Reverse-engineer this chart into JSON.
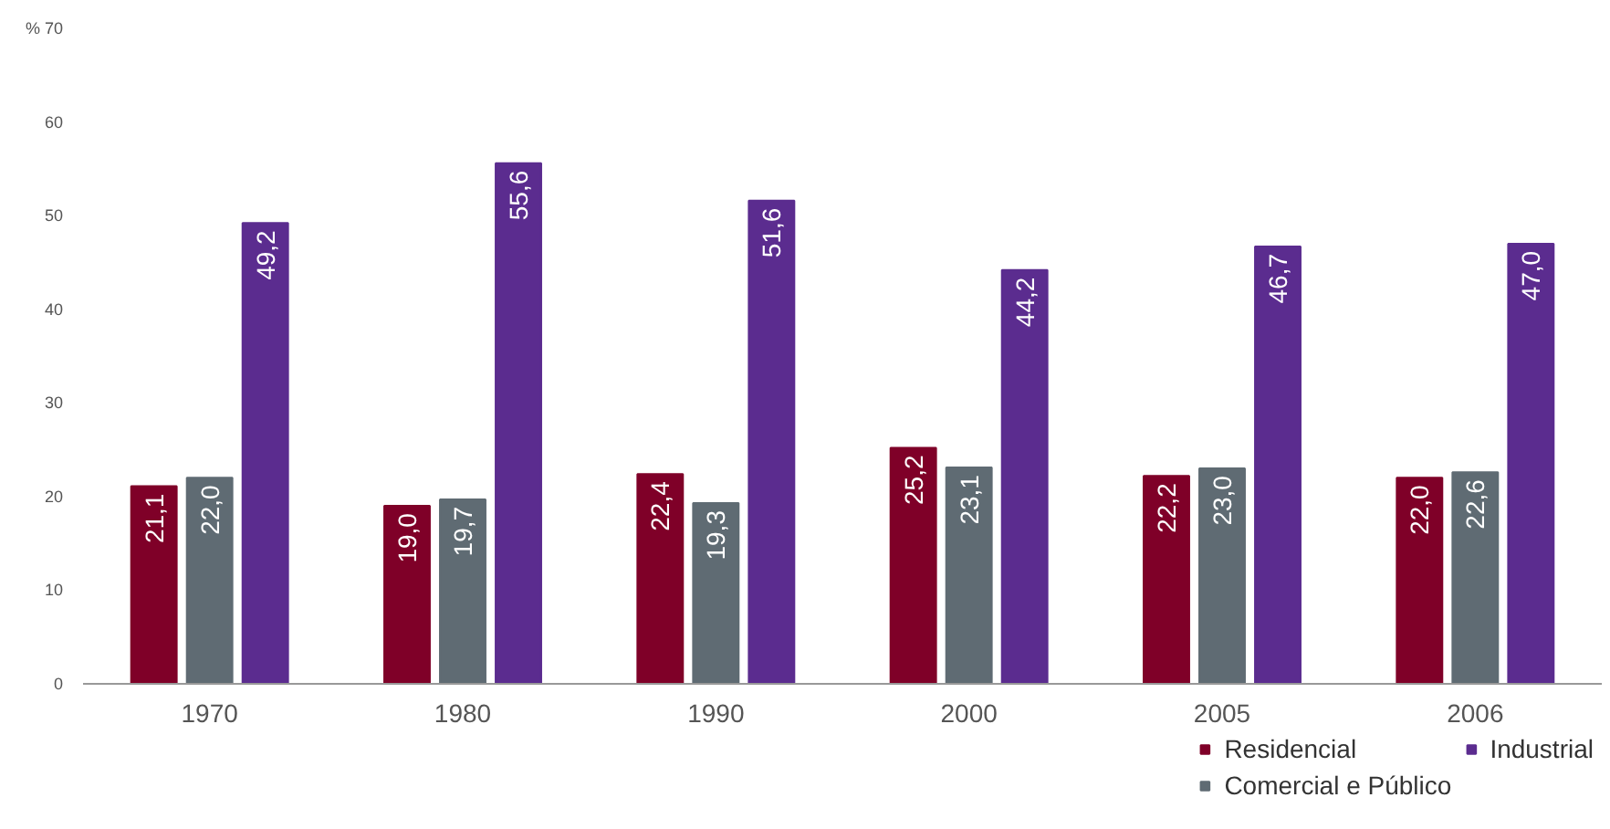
{
  "chart_data": {
    "type": "bar",
    "categories": [
      "1970",
      "1980",
      "1990",
      "2000",
      "2005",
      "2006"
    ],
    "series": [
      {
        "name": "Residencial",
        "color": "#7f0028",
        "values": [
          21.1,
          19.0,
          22.4,
          25.2,
          22.2,
          22.0
        ],
        "value_labels": [
          "21,1",
          "19,0",
          "22,4",
          "25,2",
          "22,2",
          "22,0"
        ]
      },
      {
        "name": "Comercial e Público",
        "color": "#5f6b73",
        "values": [
          22.0,
          19.7,
          19.3,
          23.1,
          23.0,
          22.6
        ],
        "value_labels": [
          "22,0",
          "19,7",
          "19,3",
          "23,1",
          "23,0",
          "22,6"
        ]
      },
      {
        "name": "Industrial",
        "color": "#5b2c8f",
        "values": [
          49.2,
          55.6,
          51.6,
          44.2,
          46.7,
          47.0
        ],
        "value_labels": [
          "49,2",
          "55,6",
          "51,6",
          "44,2",
          "46,7",
          "47,0"
        ]
      }
    ],
    "ylim": [
      0,
      70
    ],
    "yticks": [
      0,
      10,
      20,
      30,
      40,
      50,
      60,
      {
        "value": 70,
        "label": "% 70"
      }
    ],
    "grid": false,
    "legend": "bottom right"
  }
}
